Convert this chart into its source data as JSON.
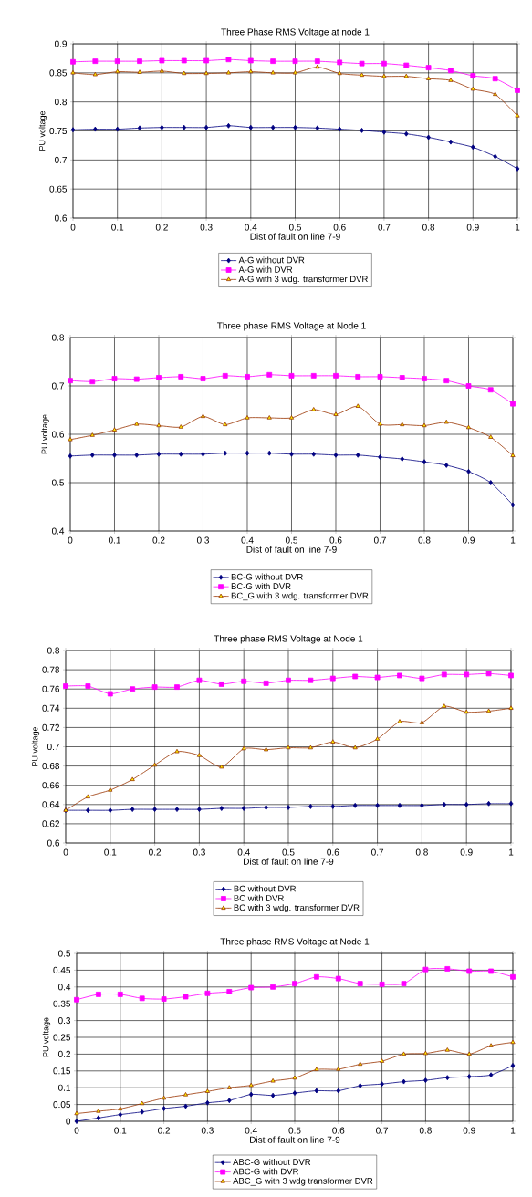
{
  "chart_data": [
    {
      "type": "line",
      "title": "Three Phase RMS Voltage at node 1",
      "xlabel": "Dist of fault on line 7-9",
      "ylabel": "PU voltage",
      "xlim": [
        0,
        1
      ],
      "xticks": [
        0,
        0.1,
        0.2,
        0.3,
        0.4,
        0.5,
        0.6,
        0.7,
        0.8,
        0.9,
        1
      ],
      "ylim": [
        0.6,
        0.9
      ],
      "yticks": [
        0.6,
        0.65,
        0.7,
        0.75,
        0.8,
        0.85,
        0.9
      ],
      "grid": true,
      "legend": "bottom",
      "x": [
        0,
        0.05,
        0.1,
        0.15,
        0.2,
        0.25,
        0.3,
        0.35,
        0.4,
        0.45,
        0.5,
        0.55,
        0.6,
        0.65,
        0.7,
        0.75,
        0.8,
        0.85,
        0.9,
        0.95,
        1
      ],
      "series": [
        {
          "name": "A-G without DVR",
          "color": "#000080",
          "marker": "diamond",
          "values": [
            0.752,
            0.753,
            0.753,
            0.755,
            0.756,
            0.756,
            0.756,
            0.759,
            0.756,
            0.756,
            0.756,
            0.755,
            0.753,
            0.751,
            0.748,
            0.745,
            0.739,
            0.731,
            0.722,
            0.706,
            0.685
          ]
        },
        {
          "name": "A-G with DVR",
          "color": "#ff00ff",
          "marker": "square",
          "values": [
            0.869,
            0.87,
            0.87,
            0.87,
            0.871,
            0.871,
            0.871,
            0.873,
            0.871,
            0.87,
            0.87,
            0.87,
            0.868,
            0.866,
            0.866,
            0.863,
            0.859,
            0.854,
            0.845,
            0.84,
            0.82
          ]
        },
        {
          "name": "A-G with 3 wdg. transformer DVR",
          "color": "#993300",
          "marker": "triangle",
          "values": [
            0.85,
            0.847,
            0.852,
            0.851,
            0.853,
            0.849,
            0.849,
            0.85,
            0.852,
            0.85,
            0.85,
            0.86,
            0.849,
            0.846,
            0.844,
            0.844,
            0.84,
            0.837,
            0.822,
            0.813,
            0.776
          ]
        }
      ]
    },
    {
      "type": "line",
      "title": "Three phase RMS Voltage at Node 1",
      "xlabel": "Dist of fault on line 7-9",
      "ylabel": "PU voltage",
      "xlim": [
        0,
        1
      ],
      "xticks": [
        0,
        0.1,
        0.2,
        0.3,
        0.4,
        0.5,
        0.6,
        0.7,
        0.8,
        0.9,
        1
      ],
      "ylim": [
        0.4,
        0.8
      ],
      "yticks": [
        0.4,
        0.5,
        0.6,
        0.7,
        0.8
      ],
      "grid": true,
      "legend": "bottom",
      "x": [
        0,
        0.05,
        0.1,
        0.15,
        0.2,
        0.25,
        0.3,
        0.35,
        0.4,
        0.45,
        0.5,
        0.55,
        0.6,
        0.65,
        0.7,
        0.75,
        0.8,
        0.85,
        0.9,
        0.95,
        1
      ],
      "series": [
        {
          "name": "BC-G without DVR",
          "color": "#000080",
          "marker": "diamond",
          "values": [
            0.555,
            0.557,
            0.557,
            0.557,
            0.559,
            0.559,
            0.559,
            0.561,
            0.561,
            0.561,
            0.559,
            0.559,
            0.557,
            0.557,
            0.553,
            0.549,
            0.543,
            0.536,
            0.523,
            0.5,
            0.454
          ]
        },
        {
          "name": "BC-G with DVR",
          "color": "#ff00ff",
          "marker": "square",
          "values": [
            0.711,
            0.709,
            0.715,
            0.714,
            0.717,
            0.719,
            0.715,
            0.721,
            0.719,
            0.723,
            0.721,
            0.721,
            0.721,
            0.719,
            0.719,
            0.717,
            0.715,
            0.711,
            0.7,
            0.692,
            0.663
          ]
        },
        {
          "name": "BC_G with 3 wdg. transformer DVR",
          "color": "#993300",
          "marker": "triangle",
          "values": [
            0.589,
            0.598,
            0.609,
            0.621,
            0.618,
            0.615,
            0.637,
            0.62,
            0.634,
            0.634,
            0.634,
            0.651,
            0.641,
            0.658,
            0.621,
            0.62,
            0.618,
            0.625,
            0.614,
            0.594,
            0.556
          ]
        }
      ]
    },
    {
      "type": "line",
      "title": "Three phase RMS Voltage at Node 1",
      "xlabel": "Dist of fault on line 7-9",
      "ylabel": "PU voltage",
      "xlim": [
        0,
        1
      ],
      "xticks": [
        0,
        0.1,
        0.2,
        0.3,
        0.4,
        0.5,
        0.6,
        0.7,
        0.8,
        0.9,
        1
      ],
      "ylim": [
        0.6,
        0.8
      ],
      "yticks": [
        0.6,
        0.62,
        0.64,
        0.66,
        0.68,
        0.7,
        0.72,
        0.74,
        0.76,
        0.78,
        0.8
      ],
      "grid": true,
      "legend": "bottom",
      "x": [
        0,
        0.05,
        0.1,
        0.15,
        0.2,
        0.25,
        0.3,
        0.35,
        0.4,
        0.45,
        0.5,
        0.55,
        0.6,
        0.65,
        0.7,
        0.75,
        0.8,
        0.85,
        0.9,
        0.95,
        1
      ],
      "series": [
        {
          "name": "BC without DVR",
          "color": "#000080",
          "marker": "diamond",
          "values": [
            0.634,
            0.634,
            0.634,
            0.635,
            0.635,
            0.635,
            0.635,
            0.636,
            0.636,
            0.637,
            0.637,
            0.638,
            0.638,
            0.639,
            0.639,
            0.639,
            0.639,
            0.64,
            0.64,
            0.641,
            0.641
          ]
        },
        {
          "name": "BC with DVR",
          "color": "#ff00ff",
          "marker": "square",
          "values": [
            0.763,
            0.763,
            0.755,
            0.76,
            0.762,
            0.762,
            0.769,
            0.765,
            0.768,
            0.766,
            0.769,
            0.769,
            0.771,
            0.773,
            0.772,
            0.774,
            0.771,
            0.775,
            0.775,
            0.776,
            0.774
          ]
        },
        {
          "name": "BC with 3 wdg. transformer DVR",
          "color": "#993300",
          "marker": "triangle",
          "values": [
            0.634,
            0.648,
            0.655,
            0.666,
            0.681,
            0.695,
            0.691,
            0.679,
            0.698,
            0.697,
            0.699,
            0.699,
            0.705,
            0.699,
            0.708,
            0.726,
            0.725,
            0.742,
            0.736,
            0.737,
            0.74
          ]
        }
      ]
    },
    {
      "type": "line",
      "title": "Three phase RMS Voltage at Node 1",
      "xlabel": "Dist of fault on line 7-9",
      "ylabel": "PU voltage",
      "xlim": [
        0,
        1
      ],
      "xticks": [
        0,
        0.1,
        0.2,
        0.3,
        0.4,
        0.5,
        0.6,
        0.7,
        0.8,
        0.9,
        1
      ],
      "ylim": [
        0,
        0.5
      ],
      "yticks": [
        0,
        0.05,
        0.1,
        0.15,
        0.2,
        0.25,
        0.3,
        0.35,
        0.4,
        0.45,
        0.5
      ],
      "grid": true,
      "legend": "bottom",
      "x": [
        0,
        0.05,
        0.1,
        0.15,
        0.2,
        0.25,
        0.3,
        0.35,
        0.4,
        0.45,
        0.5,
        0.55,
        0.6,
        0.65,
        0.7,
        0.75,
        0.8,
        0.85,
        0.9,
        0.95,
        1
      ],
      "series": [
        {
          "name": "ABC-G without DVR",
          "color": "#000080",
          "marker": "diamond",
          "values": [
            0,
            0.01,
            0.02,
            0.028,
            0.038,
            0.045,
            0.055,
            0.062,
            0.08,
            0.077,
            0.084,
            0.091,
            0.091,
            0.106,
            0.111,
            0.118,
            0.122,
            0.13,
            0.133,
            0.138,
            0.166
          ]
        },
        {
          "name": "ABC-G with DVR",
          "color": "#ff00ff",
          "marker": "square",
          "values": [
            0.362,
            0.378,
            0.378,
            0.366,
            0.364,
            0.371,
            0.381,
            0.386,
            0.398,
            0.4,
            0.41,
            0.43,
            0.425,
            0.41,
            0.408,
            0.41,
            0.452,
            0.454,
            0.447,
            0.447,
            0.43
          ]
        },
        {
          "name": "ABC_G with 3 wdg transformer DVR",
          "color": "#993300",
          "marker": "triangle",
          "values": [
            0.023,
            0.03,
            0.037,
            0.053,
            0.069,
            0.079,
            0.089,
            0.1,
            0.107,
            0.12,
            0.129,
            0.154,
            0.155,
            0.17,
            0.179,
            0.2,
            0.202,
            0.212,
            0.2,
            0.225,
            0.235
          ]
        }
      ]
    }
  ]
}
